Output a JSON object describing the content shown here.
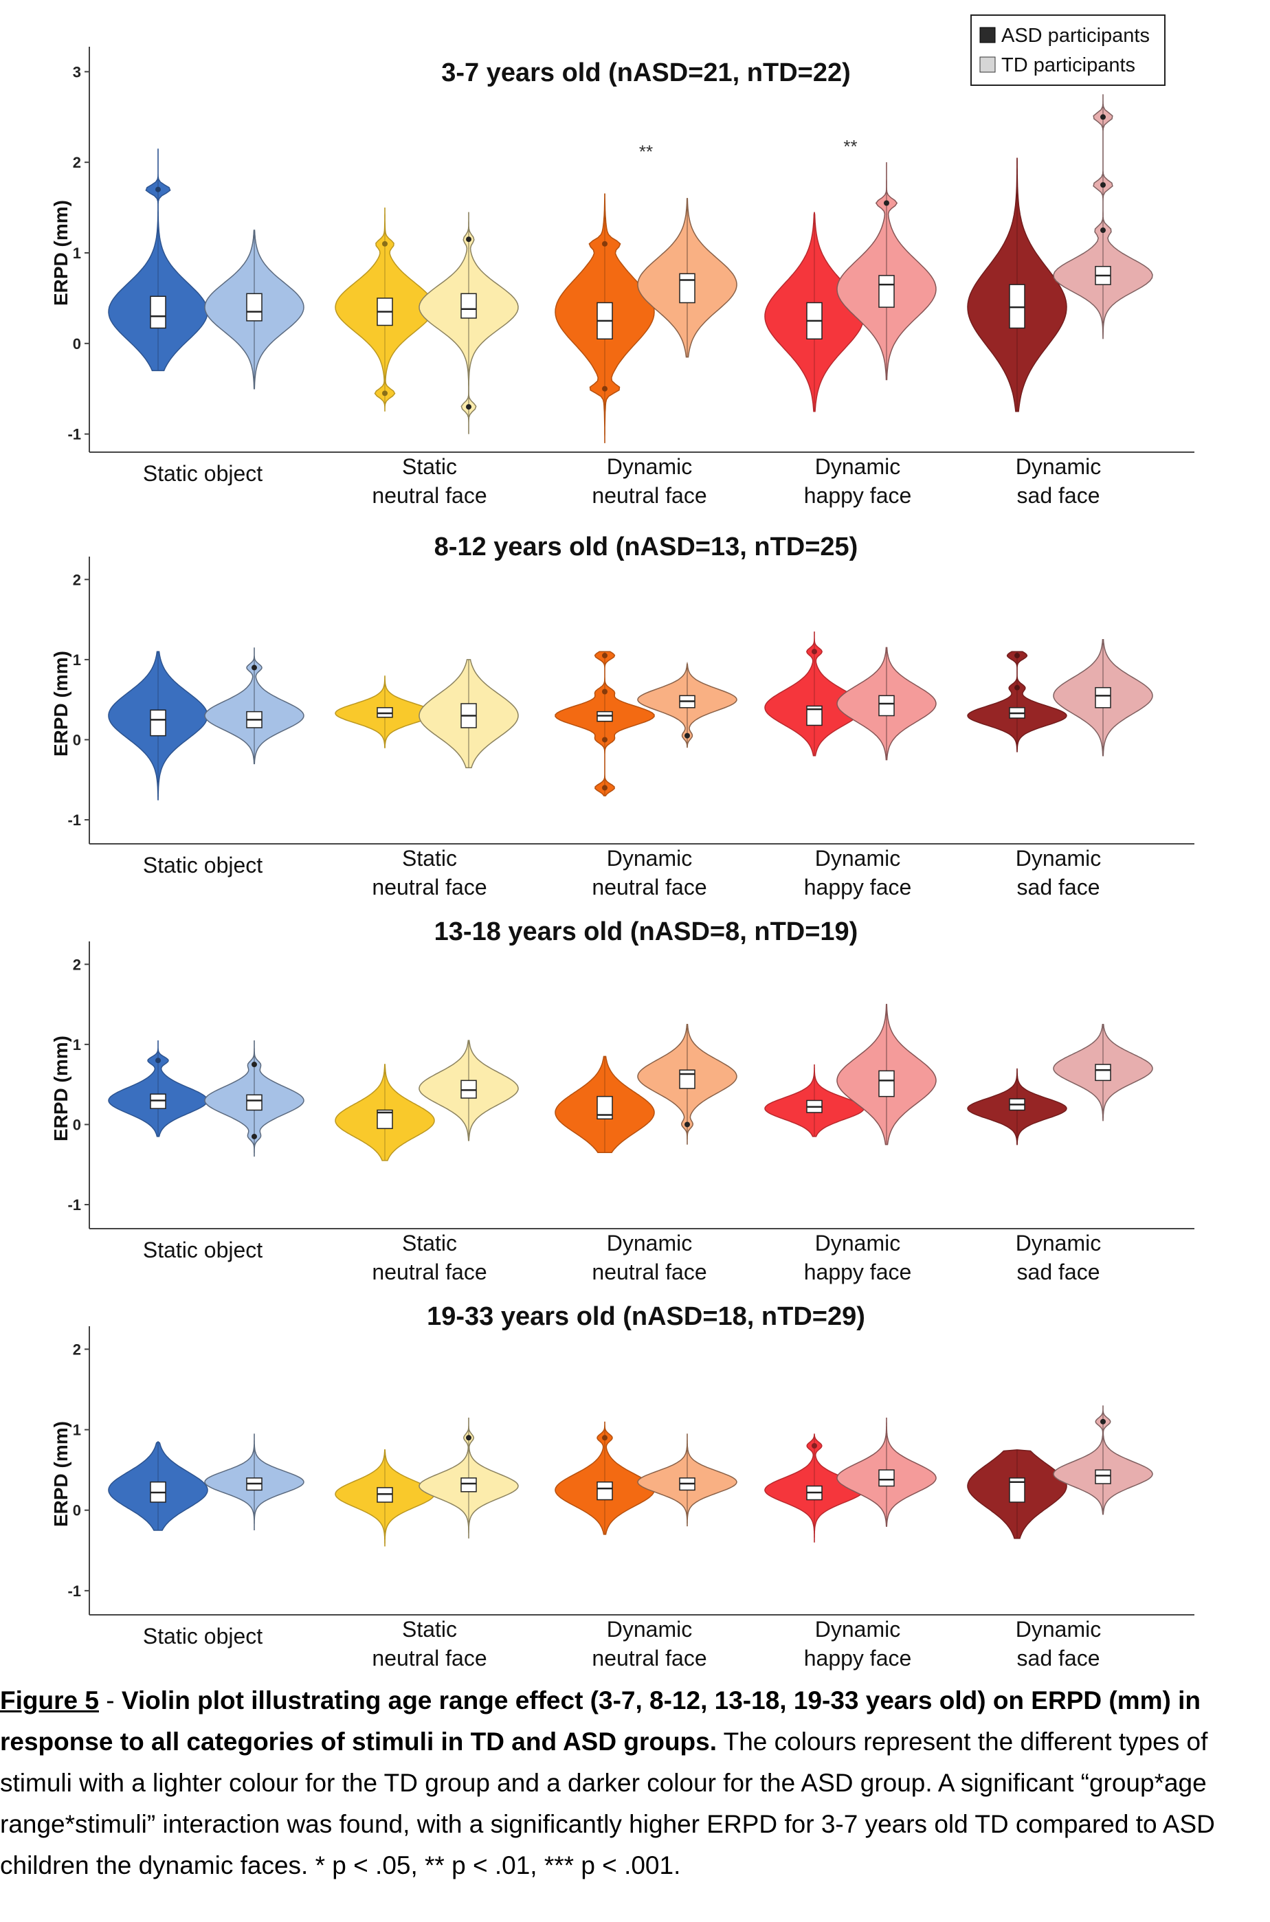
{
  "chart_data": [
    {
      "type": "violin",
      "title": "3-7 years old (nASD=21, nTD=22)",
      "ylabel": "ERPD (mm)",
      "ylim": [
        -1.2,
        3.2
      ],
      "yticks": [
        -1,
        0,
        1,
        2,
        3
      ],
      "categories": [
        "Static object",
        "Static\nneutral face",
        "Dynamic\nneutral face",
        "Dynamic\nhappy face",
        "Dynamic\nsad face"
      ],
      "significance": [
        "",
        "",
        "**",
        "**",
        "***"
      ],
      "series": [
        {
          "name": "ASD participants",
          "violins": [
            {
              "min": -0.3,
              "max": 2.15,
              "q1": 0.17,
              "median": 0.3,
              "q3": 0.52,
              "mode": 0.35,
              "peaks": [
                [
                  1.7,
                  0.25
                ]
              ]
            },
            {
              "min": -0.75,
              "max": 1.5,
              "q1": 0.2,
              "median": 0.35,
              "q3": 0.5,
              "mode": 0.4,
              "peaks": [
                [
                  -0.55,
                  0.2
                ],
                [
                  1.1,
                  0.15
                ]
              ]
            },
            {
              "min": -1.1,
              "max": 1.65,
              "q1": 0.05,
              "median": 0.25,
              "q3": 0.45,
              "mode": 0.35,
              "peaks": [
                [
                  -0.5,
                  0.25
                ],
                [
                  1.1,
                  0.2
                ]
              ]
            },
            {
              "min": -0.75,
              "max": 1.45,
              "q1": 0.05,
              "median": 0.25,
              "q3": 0.45,
              "mode": 0.3,
              "peaks": []
            },
            {
              "min": -0.75,
              "max": 2.05,
              "q1": 0.17,
              "median": 0.4,
              "q3": 0.65,
              "mode": 0.4,
              "peaks": []
            }
          ]
        },
        {
          "name": "TD participants",
          "violins": [
            {
              "min": -0.5,
              "max": 1.25,
              "q1": 0.25,
              "median": 0.35,
              "q3": 0.55,
              "mode": 0.4,
              "peaks": []
            },
            {
              "min": -1.0,
              "max": 1.45,
              "q1": 0.28,
              "median": 0.38,
              "q3": 0.55,
              "mode": 0.4,
              "peaks": [
                [
                  -0.7,
                  0.15
                ],
                [
                  1.15,
                  0.1
                ]
              ]
            },
            {
              "min": -0.15,
              "max": 1.6,
              "q1": 0.45,
              "median": 0.7,
              "q3": 0.77,
              "mode": 0.65,
              "peaks": []
            },
            {
              "min": -0.4,
              "max": 2.0,
              "q1": 0.4,
              "median": 0.65,
              "q3": 0.75,
              "mode": 0.6,
              "peaks": [
                [
                  1.55,
                  0.2
                ]
              ]
            },
            {
              "min": 0.05,
              "max": 2.75,
              "q1": 0.65,
              "median": 0.75,
              "q3": 0.85,
              "mode": 0.75,
              "peaks": [
                [
                  1.25,
                  0.15
                ],
                [
                  1.75,
                  0.2
                ],
                [
                  2.5,
                  0.2
                ]
              ]
            }
          ]
        }
      ]
    },
    {
      "type": "violin",
      "title": "8-12 years old (nASD=13, nTD=25)",
      "ylabel": "ERPD (mm)",
      "ylim": [
        -1.3,
        2.2
      ],
      "yticks": [
        -1,
        0,
        1,
        2
      ],
      "categories": [
        "Static object",
        "Static\nneutral face",
        "Dynamic\nneutral face",
        "Dynamic\nhappy face",
        "Dynamic\nsad face"
      ],
      "significance": [
        "",
        "",
        "",
        "",
        ""
      ],
      "series": [
        {
          "name": "ASD participants",
          "violins": [
            {
              "min": -0.75,
              "max": 1.1,
              "q1": 0.05,
              "median": 0.25,
              "q3": 0.37,
              "mode": 0.3,
              "peaks": []
            },
            {
              "min": -0.1,
              "max": 0.8,
              "q1": 0.28,
              "median": 0.33,
              "q3": 0.4,
              "mode": 0.33,
              "peaks": []
            },
            {
              "min": -0.7,
              "max": 1.1,
              "q1": 0.23,
              "median": 0.3,
              "q3": 0.35,
              "mode": 0.3,
              "peaks": [
                [
                  -0.6,
                  0.2
                ],
                [
                  0.0,
                  0.15
                ],
                [
                  0.6,
                  0.15
                ],
                [
                  1.05,
                  0.2
                ]
              ]
            },
            {
              "min": -0.2,
              "max": 1.35,
              "q1": 0.18,
              "median": 0.38,
              "q3": 0.42,
              "mode": 0.4,
              "peaks": [
                [
                  1.1,
                  0.15
                ]
              ]
            },
            {
              "min": -0.15,
              "max": 1.1,
              "q1": 0.27,
              "median": 0.33,
              "q3": 0.4,
              "mode": 0.3,
              "peaks": [
                [
                  0.65,
                  0.15
                ],
                [
                  1.05,
                  0.2
                ]
              ]
            }
          ]
        },
        {
          "name": "TD participants",
          "violins": [
            {
              "min": -0.3,
              "max": 1.15,
              "q1": 0.15,
              "median": 0.25,
              "q3": 0.35,
              "mode": 0.3,
              "peaks": [
                [
                  0.9,
                  0.15
                ]
              ]
            },
            {
              "min": -0.35,
              "max": 1.0,
              "q1": 0.15,
              "median": 0.3,
              "q3": 0.45,
              "mode": 0.3,
              "peaks": []
            },
            {
              "min": -0.1,
              "max": 0.95,
              "q1": 0.4,
              "median": 0.48,
              "q3": 0.55,
              "mode": 0.5,
              "peaks": [
                [
                  0.05,
                  0.1
                ]
              ]
            },
            {
              "min": -0.25,
              "max": 1.15,
              "q1": 0.3,
              "median": 0.45,
              "q3": 0.55,
              "mode": 0.45,
              "peaks": []
            },
            {
              "min": -0.2,
              "max": 1.25,
              "q1": 0.4,
              "median": 0.55,
              "q3": 0.65,
              "mode": 0.55,
              "peaks": []
            }
          ]
        }
      ]
    },
    {
      "type": "violin",
      "title": "13-18 years old (nASD=8, nTD=19)",
      "ylabel": "ERPD (mm)",
      "ylim": [
        -1.3,
        2.2
      ],
      "yticks": [
        -1,
        0,
        1,
        2
      ],
      "categories": [
        "Static object",
        "Static\nneutral face",
        "Dynamic\nneutral face",
        "Dynamic\nhappy face",
        "Dynamic\nsad face"
      ],
      "significance": [
        "",
        "",
        "",
        "",
        ""
      ],
      "series": [
        {
          "name": "ASD participants",
          "violins": [
            {
              "min": -0.15,
              "max": 1.05,
              "q1": 0.2,
              "median": 0.3,
              "q3": 0.38,
              "mode": 0.3,
              "peaks": [
                [
                  0.8,
                  0.2
                ]
              ]
            },
            {
              "min": -0.45,
              "max": 0.75,
              "q1": -0.05,
              "median": 0.15,
              "q3": 0.18,
              "mode": 0.05,
              "peaks": []
            },
            {
              "min": -0.35,
              "max": 0.85,
              "q1": 0.07,
              "median": 0.12,
              "q3": 0.35,
              "mode": 0.15,
              "peaks": []
            },
            {
              "min": -0.15,
              "max": 0.75,
              "q1": 0.15,
              "median": 0.22,
              "q3": 0.3,
              "mode": 0.2,
              "peaks": []
            },
            {
              "min": -0.25,
              "max": 0.7,
              "q1": 0.18,
              "median": 0.25,
              "q3": 0.32,
              "mode": 0.2,
              "peaks": []
            }
          ]
        },
        {
          "name": "TD participants",
          "violins": [
            {
              "min": -0.4,
              "max": 1.05,
              "q1": 0.18,
              "median": 0.3,
              "q3": 0.37,
              "mode": 0.3,
              "peaks": [
                [
                  -0.15,
                  0.1
                ],
                [
                  0.75,
                  0.1
                ]
              ]
            },
            {
              "min": -0.2,
              "max": 1.05,
              "q1": 0.33,
              "median": 0.43,
              "q3": 0.55,
              "mode": 0.45,
              "peaks": []
            },
            {
              "min": -0.25,
              "max": 1.25,
              "q1": 0.45,
              "median": 0.63,
              "q3": 0.68,
              "mode": 0.6,
              "peaks": [
                [
                  0.0,
                  0.1
                ]
              ]
            },
            {
              "min": -0.25,
              "max": 1.5,
              "q1": 0.35,
              "median": 0.55,
              "q3": 0.67,
              "mode": 0.55,
              "peaks": []
            },
            {
              "min": 0.05,
              "max": 1.25,
              "q1": 0.55,
              "median": 0.68,
              "q3": 0.75,
              "mode": 0.7,
              "peaks": []
            }
          ]
        }
      ]
    },
    {
      "type": "violin",
      "title": "19-33 years old (nASD=18, nTD=29)",
      "ylabel": "ERPD (mm)",
      "ylim": [
        -1.3,
        2.2
      ],
      "yticks": [
        -1,
        0,
        1,
        2
      ],
      "categories": [
        "Static object",
        "Static\nneutral face",
        "Dynamic\nneutral face",
        "Dynamic\nhappy face",
        "Dynamic\nsad face"
      ],
      "significance": [
        "",
        "",
        "",
        "",
        ""
      ],
      "series": [
        {
          "name": "ASD participants",
          "violins": [
            {
              "min": -0.25,
              "max": 0.85,
              "q1": 0.1,
              "median": 0.22,
              "q3": 0.35,
              "mode": 0.25,
              "peaks": []
            },
            {
              "min": -0.45,
              "max": 0.75,
              "q1": 0.1,
              "median": 0.2,
              "q3": 0.28,
              "mode": 0.2,
              "peaks": []
            },
            {
              "min": -0.3,
              "max": 1.1,
              "q1": 0.13,
              "median": 0.27,
              "q3": 0.35,
              "mode": 0.25,
              "peaks": [
                [
                  0.9,
                  0.15
                ]
              ]
            },
            {
              "min": -0.4,
              "max": 0.95,
              "q1": 0.13,
              "median": 0.22,
              "q3": 0.3,
              "mode": 0.25,
              "peaks": [
                [
                  0.8,
                  0.15
                ]
              ]
            },
            {
              "min": -0.35,
              "max": 0.75,
              "q1": 0.1,
              "median": 0.35,
              "q3": 0.4,
              "mode": 0.3,
              "peaks": []
            }
          ]
        },
        {
          "name": "TD participants",
          "violins": [
            {
              "min": -0.25,
              "max": 0.95,
              "q1": 0.25,
              "median": 0.33,
              "q3": 0.4,
              "mode": 0.35,
              "peaks": []
            },
            {
              "min": -0.35,
              "max": 1.15,
              "q1": 0.23,
              "median": 0.33,
              "q3": 0.4,
              "mode": 0.3,
              "peaks": [
                [
                  0.9,
                  0.1
                ]
              ]
            },
            {
              "min": -0.2,
              "max": 0.95,
              "q1": 0.25,
              "median": 0.33,
              "q3": 0.4,
              "mode": 0.35,
              "peaks": []
            },
            {
              "min": -0.2,
              "max": 1.15,
              "q1": 0.3,
              "median": 0.38,
              "q3": 0.5,
              "mode": 0.4,
              "peaks": []
            },
            {
              "min": -0.05,
              "max": 1.3,
              "q1": 0.33,
              "median": 0.43,
              "q3": 0.5,
              "mode": 0.45,
              "peaks": [
                [
                  1.1,
                  0.15
                ]
              ]
            }
          ]
        }
      ]
    }
  ],
  "legend": {
    "asd_label": "ASD participants",
    "td_label": "TD participants"
  },
  "colors": {
    "asd": [
      "#3a6fbf",
      "#f9c92b",
      "#f36a12",
      "#f5363c",
      "#962525"
    ],
    "td": [
      "#a6c1e6",
      "#fcecac",
      "#f9b083",
      "#f49b9a",
      "#e7aeae"
    ],
    "axis": "#444444"
  },
  "caption": {
    "label": "Figure 5",
    "separator": " - ",
    "bold": "Violin plot illustrating age range effect (3-7, 8-12, 13-18, 19-33 years old) on ERPD (mm) in response to all categories of stimuli in TD and ASD groups.",
    "text": " The colours represent the different types of stimuli with a lighter colour for the TD group and a darker colour for the ASD group.  A significant “group*age range*stimuli” interaction was found, with a significantly higher ERPD for 3-7 years old TD compared to ASD children the dynamic faces. * p < .05, ** p < .01, *** p < .001."
  }
}
